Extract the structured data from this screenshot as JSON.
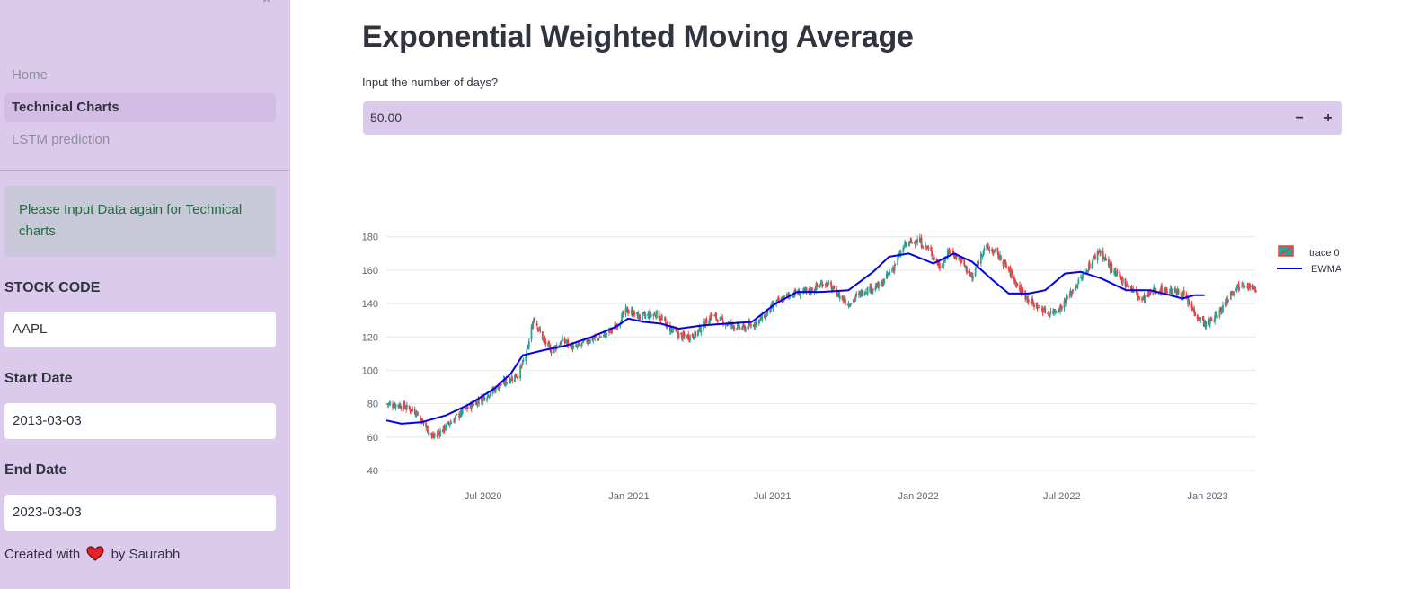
{
  "sidebar": {
    "close_glyph": "×",
    "nav": [
      {
        "label": "Home",
        "active": false
      },
      {
        "label": "Technical Charts",
        "active": true
      },
      {
        "label": "LSTM prediction",
        "active": false
      }
    ],
    "alert": "Please Input Data again for Technical charts",
    "stock_code_label": "STOCK CODE",
    "stock_code_value": "AAPL",
    "start_date_label": "Start Date",
    "start_date_value": "2013-03-03",
    "end_date_label": "End Date",
    "end_date_value": "2023-03-03",
    "credit_prefix": "Created with",
    "credit_suffix": "by Saurabh"
  },
  "main": {
    "title": "Exponential Weighted Moving Average",
    "days_label": "Input the number of days?",
    "days_value": "50.00",
    "minus": "−",
    "plus": "+"
  },
  "colors": {
    "sidebar_bg": "#dccaec",
    "increasing": "#26a69a",
    "decreasing": "#ef3b3b",
    "ewma": "#0000ee"
  },
  "chart_data": {
    "type": "candlestick",
    "yticks": [
      40,
      60,
      80,
      100,
      120,
      140,
      160,
      180
    ],
    "ylim": [
      40,
      182
    ],
    "xticks": [
      "Jul 2020",
      "Jan 2021",
      "Jul 2021",
      "Jan 2022",
      "Jul 2022",
      "Jan 2023"
    ],
    "xlim": [
      "2020-03-01",
      "2023-03-03"
    ],
    "grid": true,
    "legend_position": "top-right",
    "series": [
      {
        "name": "trace 0",
        "kind": "candlestick",
        "close_path": [
          [
            "2020-03-01",
            80
          ],
          [
            "2020-03-20",
            79
          ],
          [
            "2020-04-08",
            75
          ],
          [
            "2020-04-20",
            66
          ],
          [
            "2020-04-28",
            60
          ],
          [
            "2020-05-10",
            64
          ],
          [
            "2020-05-28",
            72
          ],
          [
            "2020-06-15",
            79
          ],
          [
            "2020-07-05",
            85
          ],
          [
            "2020-07-25",
            92
          ],
          [
            "2020-08-15",
            98
          ],
          [
            "2020-08-25",
            110
          ],
          [
            "2020-09-03",
            132
          ],
          [
            "2020-09-15",
            118
          ],
          [
            "2020-09-25",
            112
          ],
          [
            "2020-10-10",
            118
          ],
          [
            "2020-10-25",
            113
          ],
          [
            "2020-11-10",
            118
          ],
          [
            "2020-11-28",
            120
          ],
          [
            "2020-12-15",
            126
          ],
          [
            "2020-12-29",
            136
          ],
          [
            "2021-01-15",
            132
          ],
          [
            "2021-02-05",
            134
          ],
          [
            "2021-02-22",
            125
          ],
          [
            "2021-03-08",
            120
          ],
          [
            "2021-03-25",
            121
          ],
          [
            "2021-04-15",
            133
          ],
          [
            "2021-05-05",
            128
          ],
          [
            "2021-05-25",
            125
          ],
          [
            "2021-06-15",
            130
          ],
          [
            "2021-07-05",
            140
          ],
          [
            "2021-07-25",
            146
          ],
          [
            "2021-08-15",
            147
          ],
          [
            "2021-09-05",
            153
          ],
          [
            "2021-09-20",
            146
          ],
          [
            "2021-10-05",
            140
          ],
          [
            "2021-10-25",
            148
          ],
          [
            "2021-11-15",
            151
          ],
          [
            "2021-12-01",
            162
          ],
          [
            "2021-12-15",
            175
          ],
          [
            "2021-12-31",
            178
          ],
          [
            "2022-01-15",
            172
          ],
          [
            "2022-01-28",
            162
          ],
          [
            "2022-02-10",
            172
          ],
          [
            "2022-02-25",
            165
          ],
          [
            "2022-03-10",
            155
          ],
          [
            "2022-03-25",
            174
          ],
          [
            "2022-04-10",
            170
          ],
          [
            "2022-04-25",
            160
          ],
          [
            "2022-05-10",
            148
          ],
          [
            "2022-05-25",
            140
          ],
          [
            "2022-06-15",
            134
          ],
          [
            "2022-06-30",
            138
          ],
          [
            "2022-07-15",
            148
          ],
          [
            "2022-08-01",
            160
          ],
          [
            "2022-08-17",
            172
          ],
          [
            "2022-09-05",
            158
          ],
          [
            "2022-09-25",
            150
          ],
          [
            "2022-10-10",
            142
          ],
          [
            "2022-10-25",
            148
          ],
          [
            "2022-11-10",
            148
          ],
          [
            "2022-11-30",
            146
          ],
          [
            "2022-12-15",
            135
          ],
          [
            "2022-12-30",
            127
          ],
          [
            "2023-01-15",
            134
          ],
          [
            "2023-02-01",
            148
          ],
          [
            "2023-02-15",
            153
          ],
          [
            "2023-03-03",
            147
          ]
        ]
      },
      {
        "name": "EWMA",
        "kind": "line",
        "points": [
          [
            "2020-03-01",
            70
          ],
          [
            "2020-03-20",
            68
          ],
          [
            "2020-04-15",
            69
          ],
          [
            "2020-05-15",
            73
          ],
          [
            "2020-06-15",
            80
          ],
          [
            "2020-07-15",
            89
          ],
          [
            "2020-08-05",
            98
          ],
          [
            "2020-08-20",
            109
          ],
          [
            "2020-09-15",
            112
          ],
          [
            "2020-10-15",
            115
          ],
          [
            "2020-11-15",
            120
          ],
          [
            "2020-12-15",
            126
          ],
          [
            "2020-12-31",
            131
          ],
          [
            "2021-01-20",
            129
          ],
          [
            "2021-02-10",
            128
          ],
          [
            "2021-03-05",
            125
          ],
          [
            "2021-04-05",
            127
          ],
          [
            "2021-05-05",
            128
          ],
          [
            "2021-06-05",
            129
          ],
          [
            "2021-07-05",
            140
          ],
          [
            "2021-08-01",
            147
          ],
          [
            "2021-09-01",
            147
          ],
          [
            "2021-10-05",
            148
          ],
          [
            "2021-11-05",
            159
          ],
          [
            "2021-11-25",
            168
          ],
          [
            "2021-12-20",
            170
          ],
          [
            "2022-01-20",
            164
          ],
          [
            "2022-02-15",
            170
          ],
          [
            "2022-03-10",
            165
          ],
          [
            "2022-04-05",
            154
          ],
          [
            "2022-04-25",
            146
          ],
          [
            "2022-05-20",
            146
          ],
          [
            "2022-06-10",
            148
          ],
          [
            "2022-07-05",
            158
          ],
          [
            "2022-07-25",
            159
          ],
          [
            "2022-08-20",
            155
          ],
          [
            "2022-09-20",
            148
          ],
          [
            "2022-10-20",
            148
          ],
          [
            "2022-11-15",
            145
          ],
          [
            "2022-11-30",
            143
          ],
          [
            "2022-12-15",
            145
          ],
          [
            "2022-12-28",
            145
          ]
        ]
      }
    ]
  }
}
